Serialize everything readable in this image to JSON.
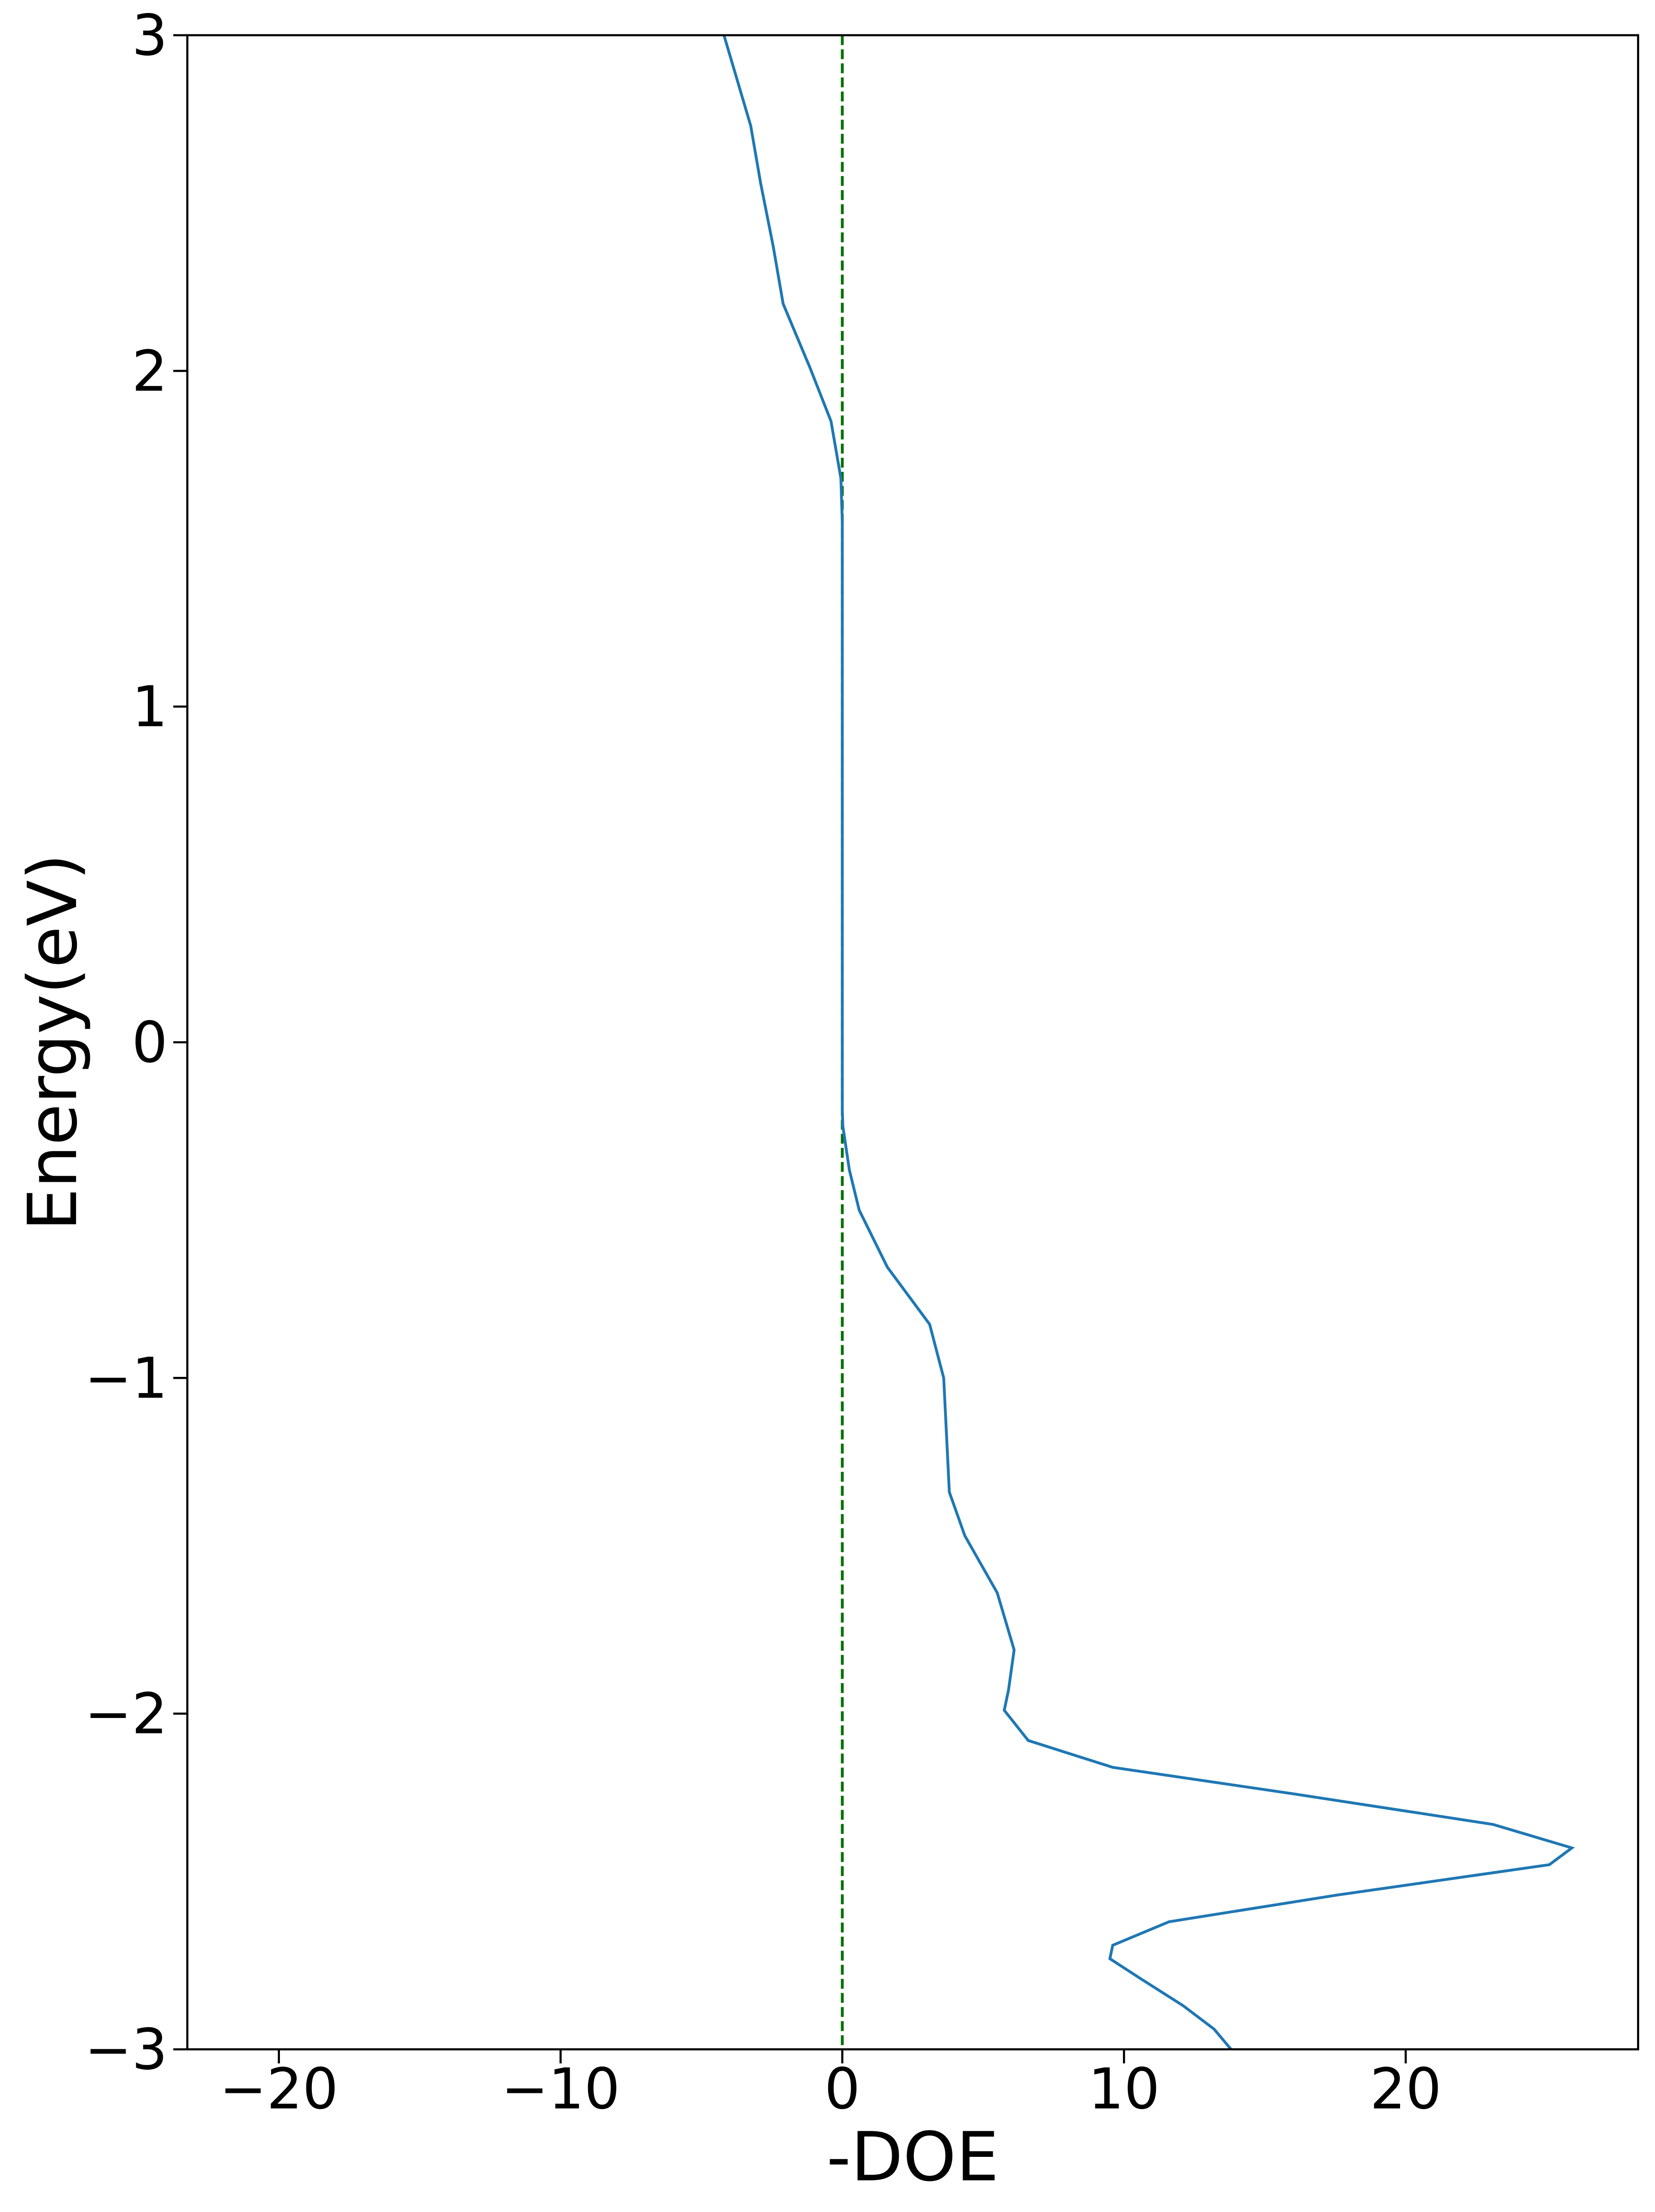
{
  "chart_data": {
    "type": "line",
    "xlabel": "-DOE",
    "ylabel": "Energy(eV)",
    "xlim": [
      -23.25,
      28.25
    ],
    "ylim": [
      -3,
      3
    ],
    "xticks": [
      {
        "value": -20,
        "label": "−20"
      },
      {
        "value": -10,
        "label": "−10"
      },
      0,
      10,
      20
    ],
    "yticks": [
      {
        "value": -3,
        "label": "−3"
      },
      {
        "value": -2,
        "label": "−2"
      },
      {
        "value": -1,
        "label": "−1"
      },
      0,
      1,
      2,
      3
    ],
    "vlines": [
      {
        "value": 0,
        "color": "#007000",
        "dashed": true
      }
    ],
    "series": [
      {
        "color": "#1f77b4",
        "y": [
          3.0,
          2.73,
          2.56,
          2.37,
          2.2,
          2.01,
          1.85,
          1.68,
          1.55,
          1.0,
          0.5,
          0.0,
          -0.2,
          -0.25,
          -0.38,
          -0.5,
          -0.67,
          -0.84,
          -1.0,
          -1.17,
          -1.34,
          -1.47,
          -1.64,
          -1.81,
          -1.93,
          -1.99,
          -2.08,
          -2.16,
          -2.24,
          -2.33,
          -2.4,
          -2.45,
          -2.54,
          -2.62,
          -2.69,
          -2.73,
          -2.79,
          -2.87,
          -2.94,
          -3.0
        ],
        "x": [
          -4.2,
          -3.25,
          -2.9,
          -2.45,
          -2.1,
          -1.15,
          -0.4,
          -0.05,
          0,
          0,
          0,
          0,
          0,
          0.02,
          0.25,
          0.6,
          1.6,
          3.1,
          3.6,
          3.7,
          3.8,
          4.35,
          5.5,
          6.1,
          5.9,
          5.75,
          6.6,
          9.6,
          16.1,
          23.1,
          25.9,
          25.1,
          17.6,
          11.6,
          9.6,
          9.5,
          10.6,
          12.1,
          13.2,
          13.8
        ]
      }
    ]
  }
}
